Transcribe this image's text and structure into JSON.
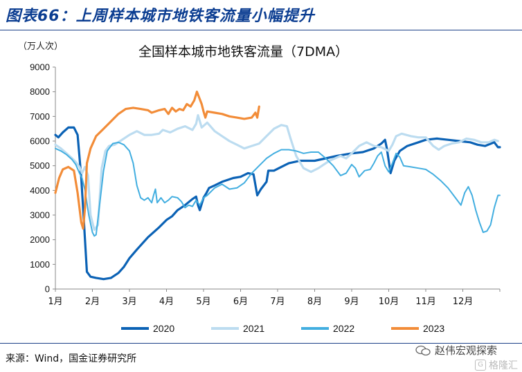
{
  "header": {
    "figure_title": "图表66：上周样本城市地铁客流量小幅提升"
  },
  "footer": {
    "source": "来源：Wind，国金证券研究所",
    "brand": "赵伟宏观探索",
    "watermark": "格隆汇"
  },
  "chart_data": {
    "type": "line",
    "title": "全国样本城市地铁客流量（7DMA）",
    "unit_label": "（万人次）",
    "xlabel": "",
    "ylabel": "",
    "x_ticks": [
      "1月",
      "2月",
      "3月",
      "4月",
      "5月",
      "6月",
      "7月",
      "8月",
      "9月",
      "10月",
      "11月",
      "12月"
    ],
    "xlim": [
      1,
      13
    ],
    "ylim": [
      0,
      9000
    ],
    "y_ticks": [
      0,
      1000,
      2000,
      3000,
      4000,
      5000,
      6000,
      7000,
      8000,
      9000
    ],
    "grid": false,
    "legend_position": "bottom",
    "series": [
      {
        "name": "2020",
        "color": "#0b62b5",
        "width": 3.2,
        "points": [
          [
            1.0,
            6250
          ],
          [
            1.08,
            6150
          ],
          [
            1.2,
            6350
          ],
          [
            1.35,
            6550
          ],
          [
            1.5,
            6550
          ],
          [
            1.6,
            6250
          ],
          [
            1.7,
            4500
          ],
          [
            1.78,
            2500
          ],
          [
            1.85,
            700
          ],
          [
            1.95,
            500
          ],
          [
            2.1,
            450
          ],
          [
            2.3,
            400
          ],
          [
            2.5,
            450
          ],
          [
            2.7,
            650
          ],
          [
            2.85,
            900
          ],
          [
            3.0,
            1250
          ],
          [
            3.2,
            1600
          ],
          [
            3.5,
            2100
          ],
          [
            3.8,
            2500
          ],
          [
            4.0,
            2800
          ],
          [
            4.15,
            2950
          ],
          [
            4.3,
            3200
          ],
          [
            4.5,
            3400
          ],
          [
            4.7,
            3650
          ],
          [
            4.8,
            3750
          ],
          [
            4.85,
            3400
          ],
          [
            4.9,
            3200
          ],
          [
            5.0,
            3700
          ],
          [
            5.08,
            3900
          ],
          [
            5.15,
            4100
          ],
          [
            5.3,
            4200
          ],
          [
            5.5,
            4350
          ],
          [
            5.8,
            4500
          ],
          [
            6.0,
            4550
          ],
          [
            6.2,
            4700
          ],
          [
            6.35,
            4650
          ],
          [
            6.45,
            3800
          ],
          [
            6.55,
            4050
          ],
          [
            6.7,
            4350
          ],
          [
            6.75,
            4800
          ],
          [
            6.9,
            4800
          ],
          [
            7.1,
            4950
          ],
          [
            7.3,
            5100
          ],
          [
            7.6,
            5200
          ],
          [
            8.0,
            5200
          ],
          [
            8.3,
            5300
          ],
          [
            8.6,
            5400
          ],
          [
            9.0,
            5500
          ],
          [
            9.3,
            5550
          ],
          [
            9.6,
            5700
          ],
          [
            9.8,
            5900
          ],
          [
            9.9,
            6050
          ],
          [
            9.95,
            5700
          ],
          [
            10.05,
            4700
          ],
          [
            10.15,
            5200
          ],
          [
            10.3,
            5600
          ],
          [
            10.5,
            5800
          ],
          [
            10.8,
            5950
          ],
          [
            11.0,
            6050
          ],
          [
            11.3,
            6100
          ],
          [
            11.6,
            6050
          ],
          [
            11.9,
            6000
          ],
          [
            12.2,
            5950
          ],
          [
            12.4,
            5850
          ],
          [
            12.6,
            5800
          ],
          [
            12.85,
            5950
          ],
          [
            12.95,
            5750
          ],
          [
            13.0,
            5750
          ]
        ]
      },
      {
        "name": "2021",
        "color": "#bcdcf0",
        "width": 3.2,
        "points": [
          [
            1.0,
            5850
          ],
          [
            1.15,
            5700
          ],
          [
            1.3,
            5500
          ],
          [
            1.45,
            5300
          ],
          [
            1.55,
            5150
          ],
          [
            1.65,
            4950
          ],
          [
            1.72,
            4700
          ],
          [
            1.8,
            4950
          ],
          [
            1.88,
            4600
          ],
          [
            1.95,
            3000
          ],
          [
            2.05,
            2400
          ],
          [
            2.15,
            2600
          ],
          [
            2.25,
            4900
          ],
          [
            2.35,
            5600
          ],
          [
            2.45,
            5800
          ],
          [
            2.6,
            5850
          ],
          [
            2.75,
            6000
          ],
          [
            3.0,
            6250
          ],
          [
            3.2,
            6400
          ],
          [
            3.4,
            6250
          ],
          [
            3.6,
            6250
          ],
          [
            3.8,
            6300
          ],
          [
            3.9,
            6450
          ],
          [
            4.1,
            6350
          ],
          [
            4.3,
            6500
          ],
          [
            4.5,
            6600
          ],
          [
            4.7,
            6450
          ],
          [
            4.8,
            6700
          ],
          [
            4.85,
            7050
          ],
          [
            4.95,
            6550
          ],
          [
            5.1,
            6750
          ],
          [
            5.3,
            6400
          ],
          [
            5.5,
            6200
          ],
          [
            5.7,
            6000
          ],
          [
            5.9,
            5850
          ],
          [
            6.1,
            5700
          ],
          [
            6.3,
            5800
          ],
          [
            6.5,
            5900
          ],
          [
            6.7,
            6200
          ],
          [
            6.9,
            6500
          ],
          [
            7.1,
            6650
          ],
          [
            7.25,
            6600
          ],
          [
            7.35,
            6100
          ],
          [
            7.5,
            5400
          ],
          [
            7.7,
            4900
          ],
          [
            7.9,
            4750
          ],
          [
            8.1,
            4900
          ],
          [
            8.4,
            5200
          ],
          [
            8.7,
            5400
          ],
          [
            8.85,
            5300
          ],
          [
            9.0,
            5500
          ],
          [
            9.2,
            5800
          ],
          [
            9.4,
            5950
          ],
          [
            9.6,
            5800
          ],
          [
            9.8,
            5750
          ],
          [
            10.0,
            5600
          ],
          [
            10.1,
            5850
          ],
          [
            10.2,
            6200
          ],
          [
            10.35,
            6300
          ],
          [
            10.6,
            6200
          ],
          [
            10.8,
            6150
          ],
          [
            11.0,
            6150
          ],
          [
            11.2,
            5800
          ],
          [
            11.35,
            5650
          ],
          [
            11.5,
            5800
          ],
          [
            11.7,
            5900
          ],
          [
            11.9,
            5950
          ],
          [
            12.1,
            6100
          ],
          [
            12.3,
            6050
          ],
          [
            12.5,
            5950
          ],
          [
            12.7,
            5950
          ],
          [
            12.85,
            6050
          ],
          [
            12.95,
            6000
          ]
        ]
      },
      {
        "name": "2022",
        "color": "#42aee0",
        "width": 2.0,
        "points": [
          [
            1.0,
            5700
          ],
          [
            1.15,
            5600
          ],
          [
            1.3,
            5450
          ],
          [
            1.45,
            5250
          ],
          [
            1.55,
            5050
          ],
          [
            1.65,
            4700
          ],
          [
            1.72,
            4500
          ],
          [
            1.8,
            4000
          ],
          [
            1.9,
            3000
          ],
          [
            2.0,
            2300
          ],
          [
            2.05,
            2150
          ],
          [
            2.1,
            2200
          ],
          [
            2.2,
            3500
          ],
          [
            2.3,
            4800
          ],
          [
            2.4,
            5600
          ],
          [
            2.55,
            5900
          ],
          [
            2.7,
            5950
          ],
          [
            2.85,
            5850
          ],
          [
            3.0,
            5600
          ],
          [
            3.1,
            5100
          ],
          [
            3.2,
            4200
          ],
          [
            3.3,
            3700
          ],
          [
            3.4,
            3600
          ],
          [
            3.5,
            3700
          ],
          [
            3.6,
            3500
          ],
          [
            3.65,
            3800
          ],
          [
            3.7,
            4050
          ],
          [
            3.75,
            3500
          ],
          [
            3.85,
            3700
          ],
          [
            3.95,
            3500
          ],
          [
            4.05,
            3600
          ],
          [
            4.15,
            3750
          ],
          [
            4.3,
            3700
          ],
          [
            4.4,
            3550
          ],
          [
            4.5,
            3300
          ],
          [
            4.6,
            3400
          ],
          [
            4.7,
            3350
          ],
          [
            4.8,
            3600
          ],
          [
            4.9,
            3400
          ],
          [
            5.0,
            3700
          ],
          [
            5.1,
            3800
          ],
          [
            5.3,
            4100
          ],
          [
            5.5,
            4250
          ],
          [
            5.7,
            4050
          ],
          [
            5.9,
            4100
          ],
          [
            6.1,
            4300
          ],
          [
            6.3,
            4700
          ],
          [
            6.5,
            5000
          ],
          [
            6.7,
            5300
          ],
          [
            6.9,
            5500
          ],
          [
            7.1,
            5650
          ],
          [
            7.3,
            5650
          ],
          [
            7.5,
            5600
          ],
          [
            7.7,
            5500
          ],
          [
            7.9,
            5550
          ],
          [
            8.1,
            5550
          ],
          [
            8.3,
            5300
          ],
          [
            8.5,
            5000
          ],
          [
            8.7,
            4600
          ],
          [
            8.85,
            4700
          ],
          [
            9.0,
            5050
          ],
          [
            9.1,
            4900
          ],
          [
            9.2,
            4550
          ],
          [
            9.35,
            4800
          ],
          [
            9.5,
            4850
          ],
          [
            9.6,
            5100
          ],
          [
            9.7,
            5400
          ],
          [
            9.8,
            5550
          ],
          [
            9.9,
            5000
          ],
          [
            10.0,
            4750
          ],
          [
            10.1,
            5100
          ],
          [
            10.2,
            5500
          ],
          [
            10.3,
            5350
          ],
          [
            10.4,
            5000
          ],
          [
            10.6,
            4950
          ],
          [
            10.8,
            4900
          ],
          [
            11.0,
            4850
          ],
          [
            11.2,
            4650
          ],
          [
            11.4,
            4400
          ],
          [
            11.6,
            4100
          ],
          [
            11.8,
            3700
          ],
          [
            11.95,
            3400
          ],
          [
            12.05,
            3900
          ],
          [
            12.15,
            4150
          ],
          [
            12.25,
            3800
          ],
          [
            12.35,
            3200
          ],
          [
            12.45,
            2700
          ],
          [
            12.55,
            2300
          ],
          [
            12.65,
            2350
          ],
          [
            12.75,
            2600
          ],
          [
            12.85,
            3300
          ],
          [
            12.95,
            3800
          ],
          [
            13.0,
            3800
          ]
        ]
      },
      {
        "name": "2023",
        "color": "#f28c38",
        "width": 3.2,
        "points": [
          [
            1.0,
            3900
          ],
          [
            1.05,
            4200
          ],
          [
            1.1,
            4500
          ],
          [
            1.2,
            4850
          ],
          [
            1.35,
            4950
          ],
          [
            1.5,
            4800
          ],
          [
            1.6,
            3900
          ],
          [
            1.7,
            2700
          ],
          [
            1.75,
            2450
          ],
          [
            1.8,
            3300
          ],
          [
            1.85,
            5100
          ],
          [
            1.95,
            5700
          ],
          [
            2.1,
            6200
          ],
          [
            2.3,
            6500
          ],
          [
            2.5,
            6800
          ],
          [
            2.7,
            7100
          ],
          [
            2.9,
            7300
          ],
          [
            3.1,
            7350
          ],
          [
            3.3,
            7300
          ],
          [
            3.5,
            7250
          ],
          [
            3.6,
            7150
          ],
          [
            3.8,
            7250
          ],
          [
            3.95,
            7300
          ],
          [
            4.05,
            7100
          ],
          [
            4.15,
            7350
          ],
          [
            4.25,
            7200
          ],
          [
            4.35,
            7300
          ],
          [
            4.45,
            7250
          ],
          [
            4.55,
            7500
          ],
          [
            4.65,
            7400
          ],
          [
            4.75,
            7650
          ],
          [
            4.82,
            8000
          ],
          [
            4.9,
            7700
          ],
          [
            4.95,
            7500
          ],
          [
            5.0,
            7200
          ],
          [
            5.05,
            6950
          ],
          [
            5.1,
            7200
          ],
          [
            5.3,
            7150
          ],
          [
            5.5,
            7100
          ],
          [
            5.7,
            7000
          ],
          [
            5.9,
            6950
          ],
          [
            6.1,
            6900
          ],
          [
            6.3,
            6950
          ],
          [
            6.4,
            7150
          ],
          [
            6.45,
            6950
          ],
          [
            6.5,
            7400
          ]
        ]
      }
    ]
  }
}
